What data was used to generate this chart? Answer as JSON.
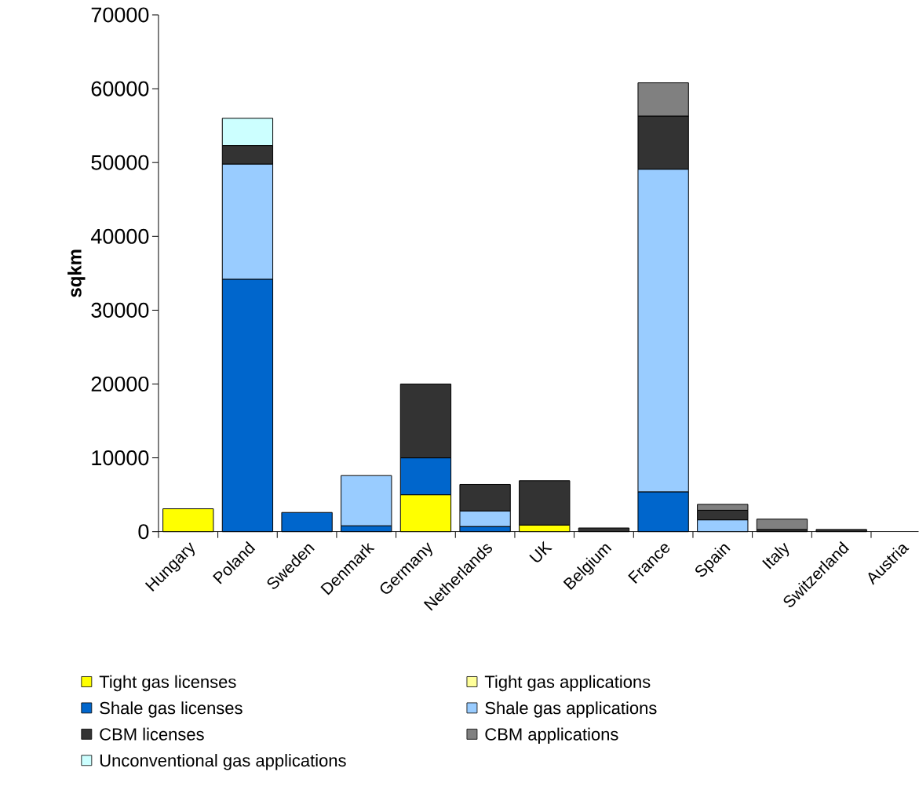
{
  "chart_data": {
    "type": "bar",
    "stacked": true,
    "ylabel": "sqkm",
    "categories": [
      "Hungary",
      "Poland",
      "Sweden",
      "Denmark",
      "Germany",
      "Netherlands",
      "UK",
      "Belgium",
      "France",
      "Spain",
      "Italy",
      "Switzerland",
      "Austria"
    ],
    "series": [
      {
        "name": "Tight gas licenses",
        "color": "#ffff00",
        "values": [
          3100,
          null,
          null,
          null,
          5000,
          null,
          900,
          null,
          null,
          null,
          null,
          null,
          null
        ]
      },
      {
        "name": "Tight gas applications",
        "color": "#ffff99",
        "values": [
          null,
          null,
          null,
          null,
          null,
          null,
          null,
          null,
          null,
          null,
          null,
          null,
          null
        ]
      },
      {
        "name": "Shale gas licenses",
        "color": "#0066cc",
        "values": [
          null,
          34200,
          2600,
          800,
          5000,
          700,
          null,
          null,
          5400,
          null,
          null,
          null,
          null
        ]
      },
      {
        "name": "Shale gas applications",
        "color": "#99ccff",
        "values": [
          null,
          15600,
          null,
          6800,
          null,
          2100,
          null,
          null,
          43700,
          1600,
          null,
          null,
          null
        ]
      },
      {
        "name": "CBM licenses",
        "color": "#333333",
        "values": [
          null,
          2500,
          null,
          null,
          10000,
          3600,
          6000,
          500,
          7200,
          1300,
          300,
          300,
          null
        ]
      },
      {
        "name": "CBM applications",
        "color": "#808080",
        "values": [
          null,
          null,
          null,
          null,
          null,
          null,
          null,
          null,
          4500,
          800,
          1400,
          null,
          null
        ]
      },
      {
        "name": "Unconventional gas applications",
        "color": "#ccffff",
        "values": [
          null,
          3700,
          null,
          null,
          null,
          null,
          null,
          null,
          null,
          null,
          null,
          null,
          null
        ]
      }
    ],
    "ylim": [
      0,
      70000
    ],
    "yticks": [
      0,
      10000,
      20000,
      30000,
      40000,
      50000,
      60000,
      70000
    ],
    "legend": "bottom",
    "grid": false
  }
}
